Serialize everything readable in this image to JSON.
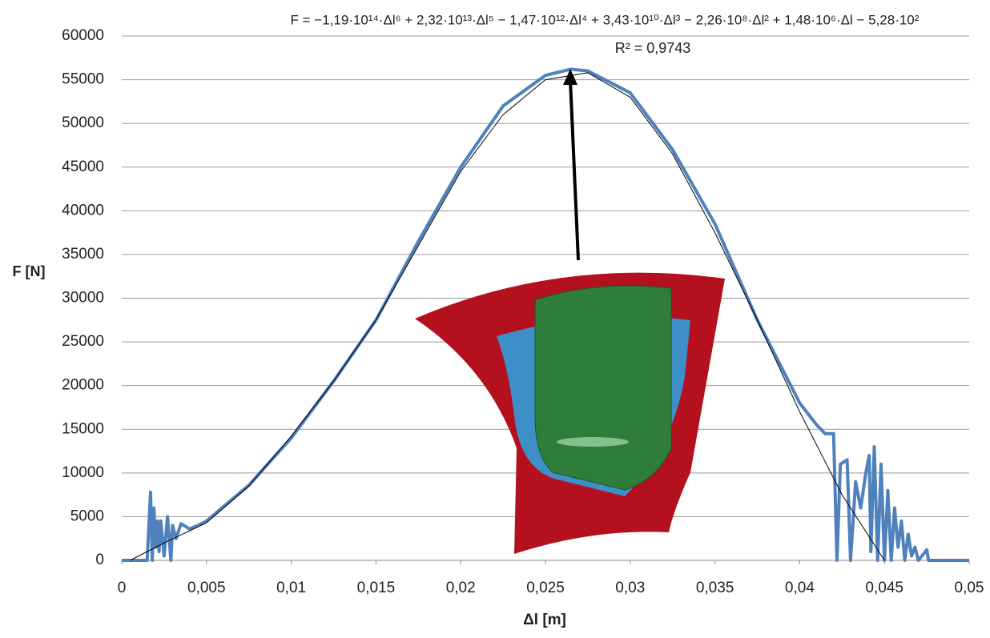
{
  "chart_data": {
    "type": "line",
    "annotations": [
      "F = −1,19·10¹⁴·Δl⁶ + 2,32·10¹³·Δl⁵ − 1,47·10¹²·Δl⁴ + 3,43·10¹⁰·Δl³ − 2,26·10⁸·Δl² + 1,48·10⁶·Δl − 5,28·10²",
      "R² = 0,9743"
    ],
    "x_label": "Δl [m]",
    "y_label": "F [N]",
    "xlim": [
      0,
      0.05
    ],
    "xticks": [
      0,
      {
        "value": 0.005,
        "label": "0,005"
      },
      {
        "value": 0.01,
        "label": "0,01"
      },
      {
        "value": 0.015,
        "label": "0,015"
      },
      {
        "value": 0.02,
        "label": "0,02"
      },
      {
        "value": 0.025,
        "label": "0,025"
      },
      {
        "value": 0.03,
        "label": "0,03"
      },
      {
        "value": 0.035,
        "label": "0,035"
      },
      {
        "value": 0.04,
        "label": "0,04"
      },
      {
        "value": 0.045,
        "label": "0,045"
      },
      {
        "value": 0.05,
        "label": "0,05"
      }
    ],
    "ylim": [
      0,
      60000
    ],
    "yticks": [
      0,
      5000,
      10000,
      15000,
      20000,
      25000,
      30000,
      35000,
      40000,
      45000,
      50000,
      55000,
      60000
    ],
    "grid": true,
    "series": [
      {
        "color": "#4f81bd",
        "width": 4,
        "x": [
          0,
          0.0015,
          0.0017,
          0.0018,
          0.0019,
          0.002,
          0.0021,
          0.0022,
          0.0023,
          0.0025,
          0.0027,
          0.0029,
          0.003,
          0.0032,
          0.0035,
          0.004,
          0.0045,
          0.005,
          0.0075,
          0.01,
          0.0125,
          0.015,
          0.0175,
          0.02,
          0.0225,
          0.025,
          0.0265,
          0.0275,
          0.03,
          0.0325,
          0.035,
          0.0375,
          0.04,
          0.041,
          0.0415,
          0.042,
          0.0422,
          0.0424,
          0.0428,
          0.043,
          0.0433,
          0.0436,
          0.0439,
          0.0441,
          0.0442,
          0.0444,
          0.0446,
          0.0448,
          0.045,
          0.0452,
          0.0454,
          0.0456,
          0.0458,
          0.046,
          0.0462,
          0.0464,
          0.0466,
          0.0468,
          0.047,
          0.0475,
          0.0476,
          0.05
        ],
        "values": [
          0,
          0,
          7800,
          0,
          6000,
          1500,
          4500,
          1000,
          4500,
          500,
          5000,
          0,
          4000,
          2500,
          4200,
          3600,
          4000,
          4500,
          8600,
          14000,
          20500,
          27500,
          36500,
          45000,
          52000,
          55500,
          56200,
          56000,
          53500,
          47000,
          38500,
          27500,
          18000,
          15500,
          14500,
          14500,
          0,
          11000,
          11500,
          0,
          9000,
          6000,
          10000,
          12000,
          1000,
          13000,
          0,
          11000,
          0,
          8000,
          0,
          6000,
          1500,
          4500,
          0,
          3000,
          500,
          1500,
          0,
          1200,
          0,
          0
        ]
      },
      {
        "color": "#000000",
        "width": 1,
        "x": [
          0.0005,
          0.0025,
          0.005,
          0.0075,
          0.01,
          0.0125,
          0.015,
          0.0175,
          0.02,
          0.0225,
          0.025,
          0.0275,
          0.03,
          0.0325,
          0.035,
          0.0375,
          0.04,
          0.0425,
          0.045
        ],
        "values": [
          0,
          2000,
          4300,
          8500,
          14200,
          20500,
          27500,
          36000,
          44500,
          51000,
          55000,
          55800,
          53000,
          46500,
          37500,
          27500,
          17000,
          7500,
          0
        ]
      }
    ]
  }
}
